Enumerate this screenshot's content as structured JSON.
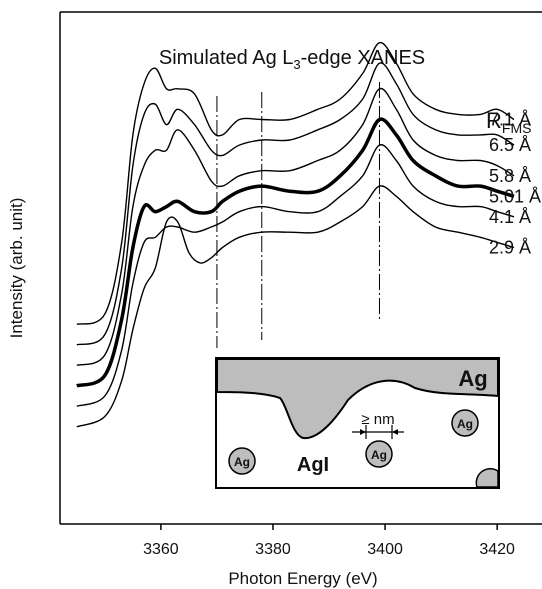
{
  "chart_data": {
    "type": "line",
    "title_pre": "Simulated Ag L",
    "title_sub": "3",
    "title_post": "-edge XANES",
    "xlabel": "Photon Energy (eV)",
    "ylabel": "Intensity (arb. unit)",
    "xlim": [
      3342,
      3428
    ],
    "xticks": [
      3360,
      3380,
      3400,
      3420
    ],
    "legend_header": "R",
    "legend_header_sub": "FMS",
    "grid": false,
    "guide_lines_x": [
      3370,
      3378,
      3399
    ],
    "series": [
      {
        "name": "7.1 Å",
        "bold": false,
        "points": [
          [
            3345,
            0.39
          ],
          [
            3350,
            0.41
          ],
          [
            3353,
            0.55
          ],
          [
            3355,
            0.76
          ],
          [
            3357,
            0.86
          ],
          [
            3359,
            0.89
          ],
          [
            3361,
            0.85
          ],
          [
            3363,
            0.85
          ],
          [
            3366,
            0.84
          ],
          [
            3369,
            0.77
          ],
          [
            3371,
            0.76
          ],
          [
            3374,
            0.79
          ],
          [
            3378,
            0.79
          ],
          [
            3383,
            0.79
          ],
          [
            3388,
            0.81
          ],
          [
            3392,
            0.83
          ],
          [
            3396,
            0.88
          ],
          [
            3399,
            0.94
          ],
          [
            3402,
            0.9
          ],
          [
            3405,
            0.84
          ],
          [
            3409,
            0.81
          ],
          [
            3413,
            0.8
          ],
          [
            3417,
            0.8
          ],
          [
            3420,
            0.81
          ],
          [
            3423,
            0.79
          ]
        ]
      },
      {
        "name": "6.5 Å",
        "bold": false,
        "points": [
          [
            3345,
            0.35
          ],
          [
            3350,
            0.37
          ],
          [
            3353,
            0.5
          ],
          [
            3355,
            0.7
          ],
          [
            3357,
            0.8
          ],
          [
            3359,
            0.82
          ],
          [
            3361,
            0.78
          ],
          [
            3363,
            0.81
          ],
          [
            3366,
            0.78
          ],
          [
            3369,
            0.73
          ],
          [
            3371,
            0.72
          ],
          [
            3374,
            0.74
          ],
          [
            3378,
            0.75
          ],
          [
            3383,
            0.75
          ],
          [
            3388,
            0.77
          ],
          [
            3392,
            0.79
          ],
          [
            3396,
            0.83
          ],
          [
            3399,
            0.9
          ],
          [
            3402,
            0.86
          ],
          [
            3405,
            0.8
          ],
          [
            3409,
            0.77
          ],
          [
            3413,
            0.76
          ],
          [
            3417,
            0.76
          ],
          [
            3420,
            0.76
          ],
          [
            3423,
            0.74
          ]
        ]
      },
      {
        "name": "5.8 Å",
        "bold": false,
        "points": [
          [
            3345,
            0.31
          ],
          [
            3350,
            0.33
          ],
          [
            3353,
            0.45
          ],
          [
            3355,
            0.62
          ],
          [
            3357,
            0.7
          ],
          [
            3359,
            0.73
          ],
          [
            3361,
            0.73
          ],
          [
            3363,
            0.77
          ],
          [
            3366,
            0.73
          ],
          [
            3369,
            0.67
          ],
          [
            3371,
            0.66
          ],
          [
            3374,
            0.68
          ],
          [
            3378,
            0.69
          ],
          [
            3383,
            0.69
          ],
          [
            3388,
            0.71
          ],
          [
            3392,
            0.73
          ],
          [
            3396,
            0.78
          ],
          [
            3399,
            0.85
          ],
          [
            3402,
            0.81
          ],
          [
            3405,
            0.75
          ],
          [
            3409,
            0.72
          ],
          [
            3413,
            0.71
          ],
          [
            3417,
            0.71
          ],
          [
            3420,
            0.7
          ],
          [
            3423,
            0.68
          ]
        ]
      },
      {
        "name": "5.01 Å",
        "bold": true,
        "points": [
          [
            3345,
            0.27
          ],
          [
            3350,
            0.29
          ],
          [
            3353,
            0.4
          ],
          [
            3355,
            0.54
          ],
          [
            3357,
            0.62
          ],
          [
            3359,
            0.61
          ],
          [
            3361,
            0.62
          ],
          [
            3363,
            0.63
          ],
          [
            3366,
            0.61
          ],
          [
            3369,
            0.61
          ],
          [
            3371,
            0.63
          ],
          [
            3374,
            0.65
          ],
          [
            3378,
            0.66
          ],
          [
            3383,
            0.65
          ],
          [
            3388,
            0.65
          ],
          [
            3392,
            0.68
          ],
          [
            3396,
            0.73
          ],
          [
            3399,
            0.79
          ],
          [
            3402,
            0.76
          ],
          [
            3405,
            0.71
          ],
          [
            3409,
            0.68
          ],
          [
            3413,
            0.66
          ],
          [
            3417,
            0.66
          ],
          [
            3420,
            0.65
          ],
          [
            3423,
            0.64
          ]
        ]
      },
      {
        "name": "4.1 Å",
        "bold": false,
        "points": [
          [
            3345,
            0.23
          ],
          [
            3350,
            0.25
          ],
          [
            3353,
            0.34
          ],
          [
            3355,
            0.47
          ],
          [
            3357,
            0.55
          ],
          [
            3359,
            0.56
          ],
          [
            3361,
            0.58
          ],
          [
            3363,
            0.58
          ],
          [
            3366,
            0.57
          ],
          [
            3369,
            0.58
          ],
          [
            3371,
            0.59
          ],
          [
            3374,
            0.61
          ],
          [
            3378,
            0.62
          ],
          [
            3383,
            0.61
          ],
          [
            3388,
            0.61
          ],
          [
            3392,
            0.64
          ],
          [
            3396,
            0.68
          ],
          [
            3399,
            0.74
          ],
          [
            3402,
            0.71
          ],
          [
            3405,
            0.66
          ],
          [
            3409,
            0.63
          ],
          [
            3413,
            0.62
          ],
          [
            3417,
            0.62
          ],
          [
            3420,
            0.61
          ],
          [
            3423,
            0.6
          ]
        ]
      },
      {
        "name": "2.9 Å",
        "bold": false,
        "points": [
          [
            3345,
            0.19
          ],
          [
            3350,
            0.21
          ],
          [
            3353,
            0.28
          ],
          [
            3355,
            0.38
          ],
          [
            3357,
            0.46
          ],
          [
            3359,
            0.5
          ],
          [
            3361,
            0.59
          ],
          [
            3363,
            0.59
          ],
          [
            3365,
            0.53
          ],
          [
            3367,
            0.51
          ],
          [
            3369,
            0.52
          ],
          [
            3371,
            0.54
          ],
          [
            3374,
            0.56
          ],
          [
            3378,
            0.57
          ],
          [
            3383,
            0.57
          ],
          [
            3388,
            0.57
          ],
          [
            3392,
            0.59
          ],
          [
            3396,
            0.62
          ],
          [
            3399,
            0.66
          ],
          [
            3402,
            0.64
          ],
          [
            3405,
            0.61
          ],
          [
            3409,
            0.58
          ],
          [
            3413,
            0.57
          ],
          [
            3417,
            0.56
          ],
          [
            3420,
            0.55
          ],
          [
            3423,
            0.54
          ]
        ]
      }
    ],
    "inset": {
      "top_label": "Ag",
      "main_label": "AgI",
      "particle_label": "Ag",
      "scale_label": "≥ nm"
    }
  }
}
